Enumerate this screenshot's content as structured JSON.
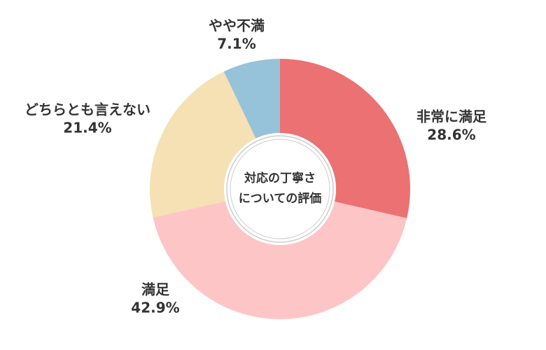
{
  "chart_data": {
    "type": "donut",
    "title": [
      "対応の丁寧さ",
      "についての評価"
    ],
    "categories": [
      "非常に満足",
      "満足",
      "どちらとも言えない",
      "やや不満"
    ],
    "values": [
      28.6,
      42.9,
      21.4,
      7.1
    ],
    "value_labels": [
      "28.6%",
      "42.9%",
      "21.4%",
      "7.1%"
    ],
    "colors": [
      "#ec7173",
      "#fec5c7",
      "#f5e1b3",
      "#97c3da"
    ]
  }
}
